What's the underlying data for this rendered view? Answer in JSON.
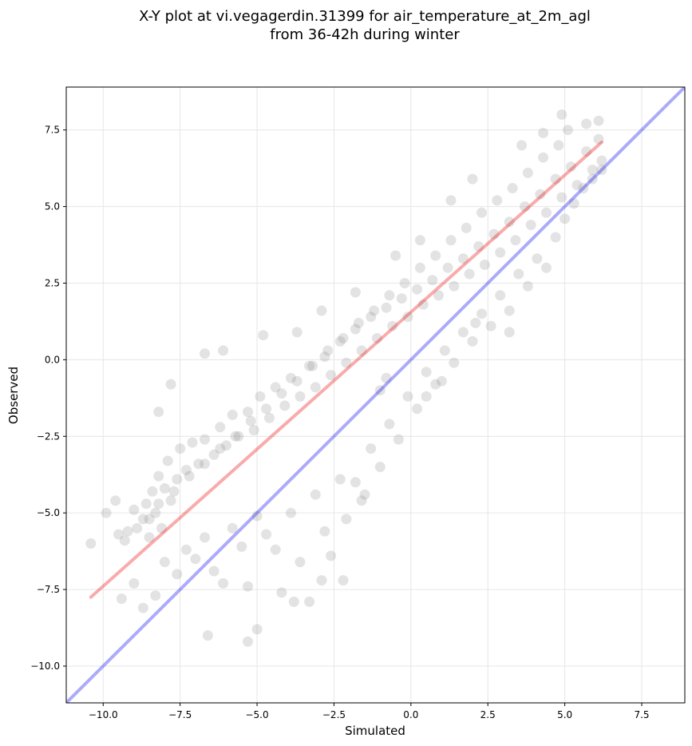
{
  "chart_data": {
    "type": "scatter",
    "title_line1": "X-Y plot at vi.vegagerdin.31399 for air_temperature_at_2m_agl",
    "title_line2": "from 36-42h during winter",
    "xlabel": "Simulated",
    "ylabel": "Observed",
    "xlim": [
      -11.2,
      8.9
    ],
    "ylim": [
      -11.2,
      8.9
    ],
    "x_ticks": [
      -10.0,
      -7.5,
      -5.0,
      -2.5,
      0.0,
      2.5,
      5.0,
      7.5
    ],
    "y_ticks": [
      -10.0,
      -7.5,
      -5.0,
      -2.5,
      0.0,
      2.5,
      5.0,
      7.5
    ],
    "x_tick_labels": [
      "−10.0",
      "−7.5",
      "−5.0",
      "−2.5",
      "0.0",
      "2.5",
      "5.0",
      "7.5"
    ],
    "y_tick_labels": [
      "−10.0",
      "−7.5",
      "−5.0",
      "−2.5",
      "0.0",
      "2.5",
      "5.0",
      "7.5"
    ],
    "grid": true,
    "point_color": "#808080",
    "identity_line": {
      "color": "#0000ee",
      "x": [
        -11.2,
        8.9
      ],
      "y": [
        -11.2,
        8.9
      ]
    },
    "regression_line": {
      "color": "#ee0000",
      "x": [
        -10.4,
        6.2
      ],
      "y": [
        -7.75,
        7.1
      ]
    },
    "points": [
      [
        -10.4,
        -6.0
      ],
      [
        -9.5,
        -5.7
      ],
      [
        -9.3,
        -5.9
      ],
      [
        -9.0,
        -4.9
      ],
      [
        -8.9,
        -5.5
      ],
      [
        -8.6,
        -4.7
      ],
      [
        -8.5,
        -5.2
      ],
      [
        -8.5,
        -5.8
      ],
      [
        -8.4,
        -4.3
      ],
      [
        -8.3,
        -5.0
      ],
      [
        -8.2,
        -3.8
      ],
      [
        -8.1,
        -5.5
      ],
      [
        -8.0,
        -4.2
      ],
      [
        -7.9,
        -3.3
      ],
      [
        -7.8,
        -4.6
      ],
      [
        -7.6,
        -3.9
      ],
      [
        -7.5,
        -2.9
      ],
      [
        -7.3,
        -3.6
      ],
      [
        -7.1,
        -2.7
      ],
      [
        -6.9,
        -3.4
      ],
      [
        -6.7,
        -2.6
      ],
      [
        -6.4,
        -3.1
      ],
      [
        -6.2,
        -2.2
      ],
      [
        -6.0,
        -2.8
      ],
      [
        -5.8,
        -1.8
      ],
      [
        -5.6,
        -2.5
      ],
      [
        -5.3,
        -1.7
      ],
      [
        -5.1,
        -2.3
      ],
      [
        -4.9,
        -1.2
      ],
      [
        -4.6,
        -1.9
      ],
      [
        -4.4,
        -0.9
      ],
      [
        -4.1,
        -1.5
      ],
      [
        -3.9,
        -0.6
      ],
      [
        -3.6,
        -1.2
      ],
      [
        -3.3,
        -0.2
      ],
      [
        -3.1,
        -0.9
      ],
      [
        -2.8,
        0.1
      ],
      [
        -2.6,
        -0.5
      ],
      [
        -2.3,
        0.6
      ],
      [
        -2.1,
        -0.1
      ],
      [
        -1.8,
        1.0
      ],
      [
        -1.6,
        0.3
      ],
      [
        -1.3,
        1.4
      ],
      [
        -1.1,
        0.7
      ],
      [
        -0.8,
        1.7
      ],
      [
        -0.6,
        1.1
      ],
      [
        -0.3,
        2.0
      ],
      [
        -0.1,
        1.4
      ],
      [
        0.2,
        2.3
      ],
      [
        0.4,
        1.8
      ],
      [
        0.7,
        2.6
      ],
      [
        0.9,
        2.1
      ],
      [
        1.2,
        3.0
      ],
      [
        1.4,
        2.4
      ],
      [
        1.7,
        3.3
      ],
      [
        1.9,
        2.8
      ],
      [
        2.2,
        3.7
      ],
      [
        2.4,
        3.1
      ],
      [
        2.7,
        4.1
      ],
      [
        2.9,
        3.5
      ],
      [
        3.2,
        4.5
      ],
      [
        3.4,
        3.9
      ],
      [
        3.7,
        5.0
      ],
      [
        3.9,
        4.4
      ],
      [
        4.2,
        5.4
      ],
      [
        4.4,
        4.8
      ],
      [
        4.7,
        5.9
      ],
      [
        4.9,
        5.3
      ],
      [
        5.2,
        6.3
      ],
      [
        5.4,
        5.7
      ],
      [
        5.7,
        6.8
      ],
      [
        5.9,
        6.2
      ],
      [
        6.1,
        7.2
      ],
      [
        6.2,
        6.5
      ],
      [
        5.1,
        7.5
      ],
      [
        4.8,
        7.0
      ],
      [
        4.3,
        6.6
      ],
      [
        3.8,
        6.1
      ],
      [
        3.3,
        5.6
      ],
      [
        2.8,
        5.2
      ],
      [
        2.3,
        4.8
      ],
      [
        1.8,
        4.3
      ],
      [
        1.3,
        3.9
      ],
      [
        0.8,
        3.4
      ],
      [
        0.3,
        3.0
      ],
      [
        -0.2,
        2.5
      ],
      [
        -0.7,
        2.1
      ],
      [
        -1.2,
        1.6
      ],
      [
        -1.7,
        1.2
      ],
      [
        -2.2,
        0.7
      ],
      [
        -2.7,
        0.3
      ],
      [
        -3.2,
        -0.2
      ],
      [
        -3.7,
        -0.7
      ],
      [
        -4.2,
        -1.1
      ],
      [
        -4.7,
        -1.6
      ],
      [
        -5.2,
        -2.0
      ],
      [
        -5.7,
        -2.5
      ],
      [
        -6.2,
        -2.9
      ],
      [
        -6.7,
        -3.4
      ],
      [
        -7.2,
        -3.8
      ],
      [
        -7.7,
        -4.3
      ],
      [
        -8.2,
        -4.7
      ],
      [
        -8.7,
        -5.2
      ],
      [
        -9.2,
        -5.6
      ],
      [
        -9.6,
        -4.6
      ],
      [
        -9.9,
        -5.0
      ],
      [
        -9.4,
        -7.8
      ],
      [
        -9.0,
        -7.3
      ],
      [
        -8.7,
        -8.1
      ],
      [
        -8.3,
        -7.7
      ],
      [
        -8.0,
        -6.6
      ],
      [
        -7.6,
        -7.0
      ],
      [
        -7.3,
        -6.2
      ],
      [
        -7.0,
        -6.5
      ],
      [
        -6.7,
        -5.8
      ],
      [
        -6.4,
        -6.9
      ],
      [
        -6.1,
        -7.3
      ],
      [
        -5.8,
        -5.5
      ],
      [
        -5.5,
        -6.1
      ],
      [
        -5.3,
        -7.4
      ],
      [
        -5.0,
        -5.1
      ],
      [
        -4.7,
        -5.7
      ],
      [
        -4.4,
        -6.2
      ],
      [
        -4.2,
        -7.6
      ],
      [
        -3.9,
        -5.0
      ],
      [
        -3.6,
        -6.6
      ],
      [
        -3.3,
        -7.9
      ],
      [
        -3.1,
        -4.4
      ],
      [
        -2.8,
        -5.6
      ],
      [
        -2.6,
        -6.4
      ],
      [
        -2.3,
        -3.9
      ],
      [
        -2.1,
        -5.2
      ],
      [
        -1.8,
        -4.0
      ],
      [
        -1.6,
        -4.6
      ],
      [
        -1.3,
        -2.9
      ],
      [
        -1.0,
        -3.5
      ],
      [
        -0.7,
        -2.1
      ],
      [
        -0.4,
        -2.6
      ],
      [
        -0.1,
        -1.2
      ],
      [
        0.2,
        -1.6
      ],
      [
        0.5,
        -0.4
      ],
      [
        0.8,
        -0.8
      ],
      [
        1.1,
        0.3
      ],
      [
        1.4,
        -0.1
      ],
      [
        1.7,
        0.9
      ],
      [
        2.0,
        0.6
      ],
      [
        2.3,
        1.5
      ],
      [
        2.6,
        1.1
      ],
      [
        2.9,
        2.1
      ],
      [
        3.2,
        1.6
      ],
      [
        3.5,
        2.8
      ],
      [
        3.8,
        2.4
      ],
      [
        4.1,
        3.3
      ],
      [
        4.4,
        3.0
      ],
      [
        4.7,
        4.0
      ],
      [
        5.0,
        4.6
      ],
      [
        5.3,
        5.1
      ],
      [
        5.6,
        5.6
      ],
      [
        5.9,
        5.9
      ],
      [
        6.2,
        6.2
      ],
      [
        -6.6,
        -9.0
      ],
      [
        -5.3,
        -9.2
      ],
      [
        -5.0,
        -8.8
      ],
      [
        -3.8,
        -7.9
      ],
      [
        -2.9,
        -7.2
      ],
      [
        -2.2,
        -7.2
      ],
      [
        -1.5,
        -4.4
      ],
      [
        -4.8,
        0.8
      ],
      [
        -6.7,
        0.2
      ],
      [
        -6.1,
        0.3
      ],
      [
        -8.2,
        -1.7
      ],
      [
        -7.8,
        -0.8
      ],
      [
        -3.7,
        0.9
      ],
      [
        -2.9,
        1.6
      ],
      [
        -1.8,
        2.2
      ],
      [
        -0.5,
        3.4
      ],
      [
        0.3,
        3.9
      ],
      [
        1.3,
        5.2
      ],
      [
        2.0,
        5.9
      ],
      [
        3.6,
        7.0
      ],
      [
        4.3,
        7.4
      ],
      [
        4.9,
        8.0
      ],
      [
        5.7,
        7.7
      ],
      [
        6.1,
        7.8
      ],
      [
        3.2,
        0.9
      ],
      [
        2.1,
        1.2
      ],
      [
        1.0,
        -0.7
      ],
      [
        0.5,
        -1.2
      ],
      [
        -0.8,
        -0.6
      ],
      [
        -1.0,
        -1.0
      ]
    ]
  }
}
